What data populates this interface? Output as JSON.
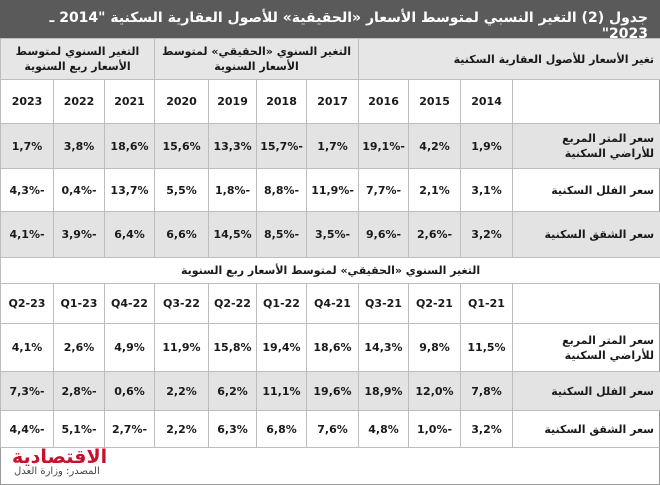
{
  "title": "جدول (2) التغير النسبي لمتوسط الأسعار «الحقيقية» للأصول العقارية السكنية \"2014 ـ 2023\"",
  "top_table": {
    "groups": [
      "تغير الأسعار للأصول العقارية السكنية",
      "التغير السنوي «الحقيقي» لمتوسط الأسعار السنوية",
      "التغير السنوي لمتوسط الأسعار ربع السنوية"
    ],
    "years": [
      "2014",
      "2015",
      "2016",
      "2017",
      "2018",
      "2019",
      "2020",
      "2021",
      "2022",
      "2023"
    ],
    "rows": [
      {
        "label": "سعر المتر المربع للأراضي السكنية",
        "values": [
          "1,9%",
          "4,2%",
          "-19,1%",
          "1,7%",
          "-15,7%",
          "13,3%",
          "15,6%",
          "18,6%",
          "3,8%",
          "1,7%"
        ]
      },
      {
        "label": "سعر الفلل السكنية",
        "values": [
          "3,1%",
          "2,1%",
          "-7,7%",
          "-11,9%",
          "-8,8%",
          "-1,8%",
          "5,5%",
          "13,7%",
          "-0,4%",
          "-4,3%"
        ]
      },
      {
        "label": "سعر الشقق السكنية",
        "values": [
          "3,2%",
          "-2,6%",
          "-9,6%",
          "-3,5%",
          "-8,5%",
          "14,5%",
          "6,6%",
          "6,4%",
          "-3,9%",
          "-4,1%"
        ]
      }
    ]
  },
  "bottom_table": {
    "section_title": "التغير السنوي «الحقيقي» لمتوسط الأسعار ربع السنوية",
    "quarters": [
      "Q1-21",
      "Q2-21",
      "21-Q3",
      "21-Q4",
      "22-Q1",
      "Q2-22",
      "Q3-22",
      "Q4-22",
      "Q1-23",
      "Q2-23"
    ],
    "rows": [
      {
        "label": "سعر المتر المربع للأراضي السكنية",
        "values": [
          "11,5%",
          "9,8%",
          "14,3%",
          "18,6%",
          "19,4%",
          "15,8%",
          "11,9%",
          "4,9%",
          "2,6%",
          "4,1%"
        ]
      },
      {
        "label": "سعر الفلل السكنية",
        "values": [
          "7,8%",
          "12,0%",
          "18,9%",
          "19,6%",
          "11,1%",
          "6,2%",
          "2,2%",
          "0,6%",
          "-2,8%",
          "-7,3%"
        ]
      },
      {
        "label": "سعر الشقق السكنية",
        "values": [
          "3,2%",
          "-1,0%",
          "4,8%",
          "7,6%",
          "6,8%",
          "6,3%",
          "2,2%",
          "-2,7%",
          "-5,1%",
          "-4,4%"
        ]
      }
    ]
  },
  "footer": {
    "source": "المصدر: وزارة العدل",
    "logo": "الاقتصادية"
  }
}
